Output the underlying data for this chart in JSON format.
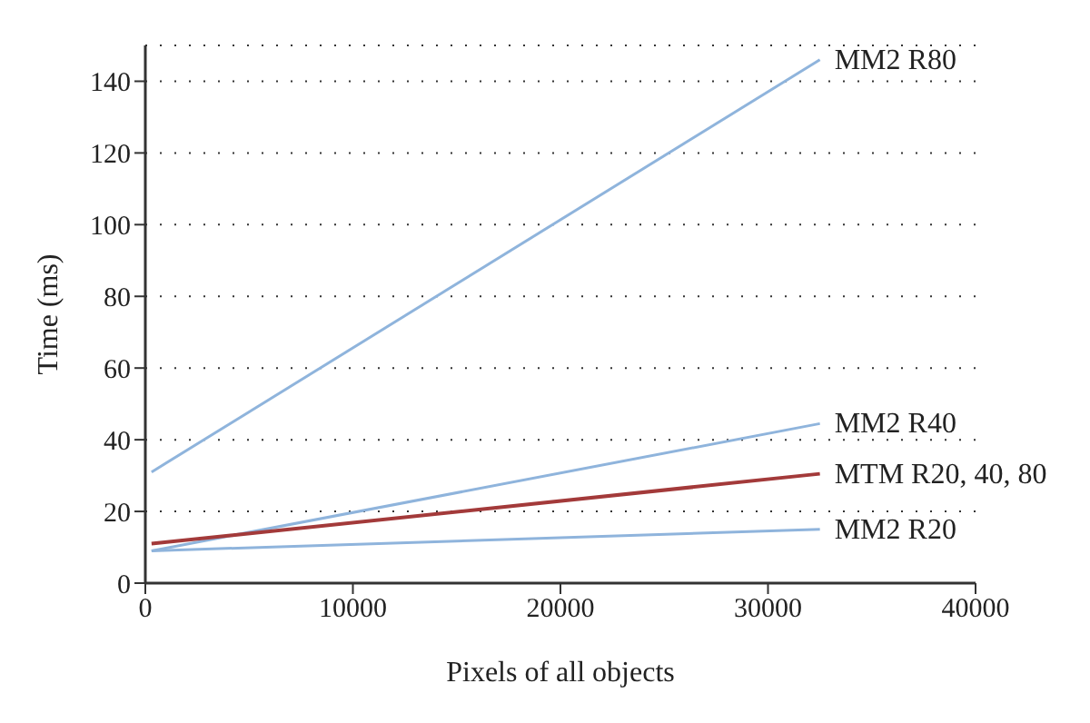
{
  "chart_data": {
    "type": "line",
    "xlabel": "Pixels of all objects",
    "ylabel": "Time (ms)",
    "x": [
      300,
      32500
    ],
    "xlim": [
      0,
      40000
    ],
    "xticks": [
      0,
      10000,
      20000,
      30000,
      40000
    ],
    "ylim": [
      0,
      150
    ],
    "yticks": [
      0,
      20,
      40,
      60,
      80,
      100,
      120,
      140
    ],
    "grid": "y",
    "marker": "none",
    "line_style": "solid",
    "series": [
      {
        "name": "MM2 R80",
        "color": "#8fb4dc",
        "values": [
          31,
          146
        ]
      },
      {
        "name": "MM2 R40",
        "color": "#8fb4dc",
        "values": [
          9,
          44.5
        ]
      },
      {
        "name": "MTM R20, 40, 80",
        "color": "#a33a3a",
        "values": [
          11,
          30.5
        ]
      },
      {
        "name": "MM2 R20",
        "color": "#8fb4dc",
        "values": [
          9,
          15
        ]
      }
    ]
  }
}
